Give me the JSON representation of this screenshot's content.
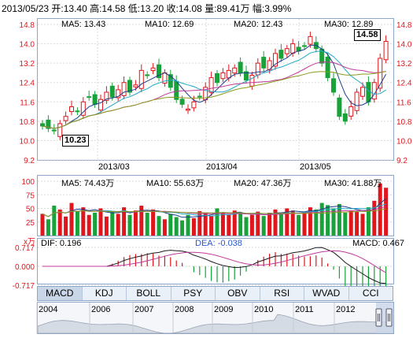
{
  "header": {
    "quote_line": "2013/05/23 开:13.40  高:14.58  低:13.20  收:14.08  量:89.41万  幅:3.99%"
  },
  "price_panel": {
    "ma_labels": [
      {
        "text": "MA5: 13.43",
        "color": "#1c3f8c"
      },
      {
        "text": "MA10: 12.69",
        "color": "#22a7c9"
      },
      {
        "text": "MA20: 12.43",
        "color": "#c0399b"
      },
      {
        "text": "MA30: 12.89",
        "color": "#8a9a1c"
      }
    ],
    "y_ticks": [
      "14.8",
      "14.0",
      "13.2",
      "12.4",
      "11.6",
      "10.8",
      "10.0",
      "9.2"
    ],
    "x_ticks": [
      "2013/03",
      "2013/04",
      "2013/05"
    ],
    "high_tag": "14.58",
    "low_tag": "10.23"
  },
  "volume_panel": {
    "ma_labels": [
      {
        "text": "MA5: 74.43万",
        "color": "#1c3f8c"
      },
      {
        "text": "MA10: 55.63万",
        "color": "#22a7c9"
      },
      {
        "text": "MA20: 47.36万",
        "color": "#c0399b"
      },
      {
        "text": "MA30: 41.88万",
        "color": "#8a9a1c"
      }
    ],
    "y_ticks": [
      "100",
      "75",
      "50",
      "25"
    ],
    "unit": "x万"
  },
  "macd_panel": {
    "dif_label": "DIF: 0.196",
    "dea_label": "DEA: -0.038",
    "macd_label": "MACD: 0.467",
    "y_ticks": [
      "0.717",
      "0.000",
      "-0.717"
    ]
  },
  "indicator_tabs": [
    "MACD",
    "KDJ",
    "BOLL",
    "PSY",
    "OBV",
    "RSI",
    "WVAD",
    "CCI"
  ],
  "timeline": {
    "years": [
      "2004",
      "2006",
      "2007",
      "2008",
      "2009",
      "2010",
      "2011",
      "2012"
    ]
  },
  "colors": {
    "up": "#e0161c",
    "down": "#19a23a",
    "grid": "#d9d9d9",
    "axis_text": "#e0161c"
  }
}
